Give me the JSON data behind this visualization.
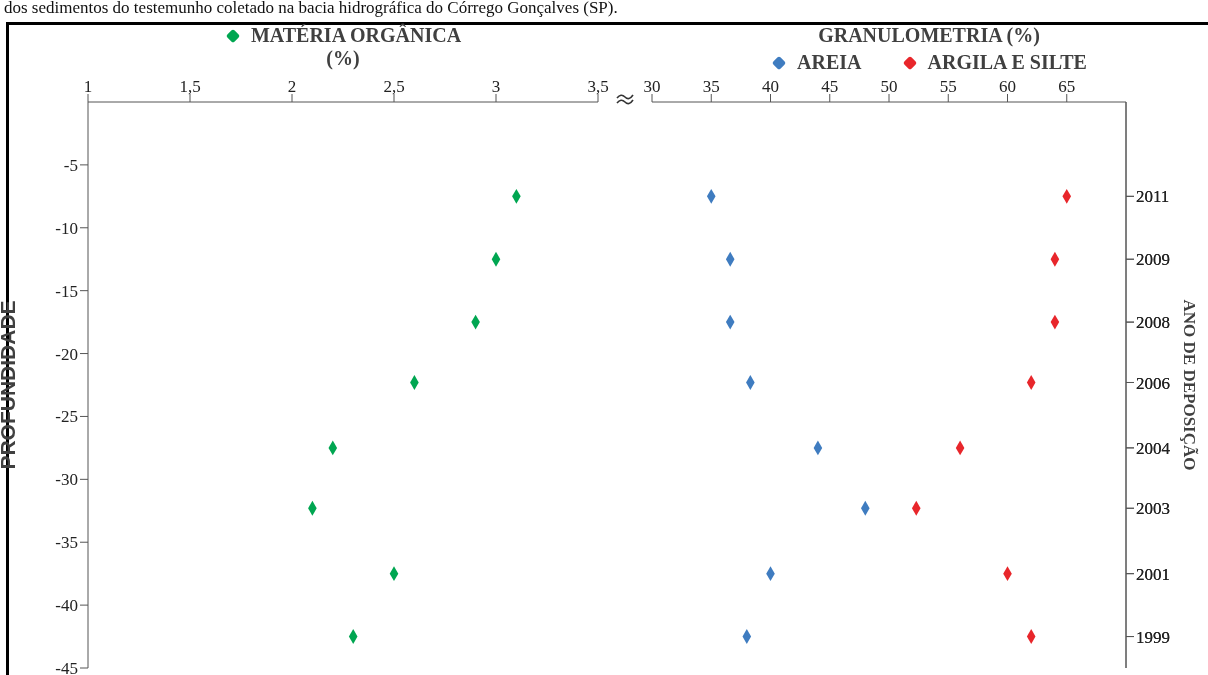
{
  "chart_data": [
    {
      "type": "scatter",
      "annotations": [
        "dos sedimentos do testemunho coletado na bacia hidrográfica do Córrego Gonçalves (SP)."
      ],
      "xlabel": "(%)",
      "ylabel": "PROFUNDIDADE",
      "xlim": [
        1,
        3.5
      ],
      "xticks": [
        1,
        {
          "value": 1.5,
          "label": "1,5"
        },
        2,
        {
          "value": 2.5,
          "label": "2,5"
        },
        3,
        {
          "value": 3.5,
          "label": "3,5"
        }
      ],
      "ylim": [
        -45,
        0
      ],
      "yticks": [
        -5,
        -10,
        -15,
        -20,
        -25,
        -30,
        -35,
        -40,
        -45
      ],
      "marker": "diamond",
      "legend": "top",
      "series": [
        {
          "name": "MATÉRIA ORGÂNICA",
          "color": "#00a651",
          "x": [
            3.1,
            3.0,
            2.9,
            2.6,
            2.2,
            2.1,
            2.5,
            2.3
          ],
          "values": [
            -7.5,
            -12.5,
            -17.5,
            -22.3,
            -27.5,
            -32.3,
            -37.5,
            -42.5
          ]
        }
      ]
    },
    {
      "type": "scatter",
      "xlabel": "GRANULOMETRIA (%)",
      "y2label": "ANO DE DEPOSIÇÃO",
      "xlim": [
        30,
        70
      ],
      "xticks": [
        30,
        35,
        40,
        45,
        50,
        55,
        60,
        65
      ],
      "ylim": [
        -45,
        0
      ],
      "tick_labels": "x",
      "annotations": [
        "2011",
        "2009",
        "2008",
        "2006",
        "2004",
        "2003",
        "2001",
        "1999"
      ],
      "marker": "diamond",
      "legend": "top",
      "series": [
        {
          "name": "AREIA",
          "color": "#3f7cc0",
          "x": [
            35.0,
            36.6,
            36.6,
            38.3,
            44.0,
            48.0,
            40.0,
            38.0
          ],
          "values": [
            -7.5,
            -12.5,
            -17.5,
            -22.3,
            -27.5,
            -32.3,
            -37.5,
            -42.5
          ]
        },
        {
          "name": "ARGILA E SILTE",
          "color": "#e8262b",
          "x": [
            65.0,
            64.0,
            64.0,
            62.0,
            56.0,
            52.3,
            60.0,
            62.0
          ],
          "values": [
            -7.5,
            -12.5,
            -17.5,
            -22.3,
            -27.5,
            -32.3,
            -37.5,
            -42.5
          ]
        }
      ]
    }
  ]
}
